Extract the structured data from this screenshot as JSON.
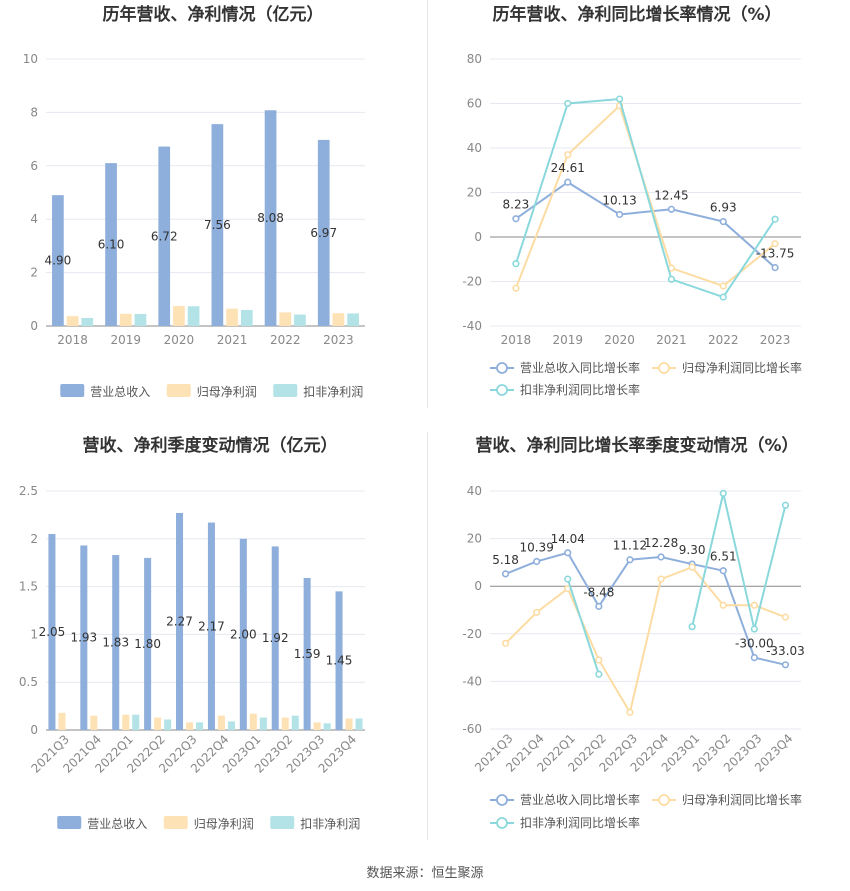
{
  "colors": {
    "revenue_bar": "#8eaedb",
    "netprofit_bar": "#fde2b6",
    "deducted_bar": "#b3e3e6",
    "revenue_line": "#8eaedb",
    "netprofit_line": "#fddca3",
    "deducted_line": "#8ad8dc",
    "grid": "#e5e8ef",
    "axis_text": "#666666",
    "title_text": "#333333"
  },
  "source_label": "数据来源：恒生聚源",
  "chart_data": [
    {
      "type": "bar",
      "title": "历年营收、净利情况（亿元）",
      "categories": [
        "2018",
        "2019",
        "2020",
        "2021",
        "2022",
        "2023"
      ],
      "ylim": [
        0,
        10
      ],
      "yticks": [
        0,
        2,
        4,
        6,
        8,
        10
      ],
      "grid": true,
      "legend_position": "bottom",
      "series": [
        {
          "name": "营业总收入",
          "values": [
            4.9,
            6.1,
            6.72,
            7.56,
            8.08,
            6.97
          ],
          "labels": [
            "4.90",
            "6.10",
            "6.72",
            "7.56",
            "8.08",
            "6.97"
          ]
        },
        {
          "name": "归母净利润",
          "values": [
            0.37,
            0.46,
            0.75,
            0.65,
            0.51,
            0.48
          ]
        },
        {
          "name": "扣非净利润",
          "values": [
            0.3,
            0.45,
            0.74,
            0.6,
            0.43,
            0.47
          ]
        }
      ]
    },
    {
      "type": "line",
      "title": "历年营收、净利同比增长率情况（%）",
      "categories": [
        "2018",
        "2019",
        "2020",
        "2021",
        "2022",
        "2023"
      ],
      "ylim": [
        -40,
        80
      ],
      "yticks": [
        -40,
        -20,
        0,
        20,
        40,
        60,
        80
      ],
      "grid": true,
      "legend_position": "bottom",
      "series": [
        {
          "name": "营业总收入同比增长率",
          "values": [
            8.23,
            24.61,
            10.13,
            12.45,
            6.93,
            -13.75
          ],
          "labels": [
            "8.23",
            "24.61",
            "10.13",
            "12.45",
            "6.93",
            "-13.75"
          ]
        },
        {
          "name": "归母净利润同比增长率",
          "values": [
            -23,
            37,
            59,
            -14,
            -22,
            -3
          ]
        },
        {
          "name": "扣非净利润同比增长率",
          "values": [
            -12,
            60,
            62,
            -19,
            -27,
            8
          ]
        }
      ]
    },
    {
      "type": "bar",
      "title": "营收、净利季度变动情况（亿元）",
      "categories": [
        "2021Q3",
        "2021Q4",
        "2022Q1",
        "2022Q2",
        "2022Q3",
        "2022Q4",
        "2023Q1",
        "2023Q2",
        "2023Q3",
        "2023Q4"
      ],
      "ylim": [
        0,
        2.5
      ],
      "yticks": [
        0,
        0.5,
        1,
        1.5,
        2,
        2.5
      ],
      "grid": true,
      "legend_position": "bottom",
      "series": [
        {
          "name": "营业总收入",
          "values": [
            2.05,
            1.93,
            1.83,
            1.8,
            2.27,
            2.17,
            2.0,
            1.92,
            1.59,
            1.45
          ],
          "labels": [
            "2.05",
            "1.93",
            "1.83",
            "1.80",
            "2.27",
            "2.17",
            "2.00",
            "1.92",
            "1.59",
            "1.45"
          ]
        },
        {
          "name": "归母净利润",
          "values": [
            0.18,
            0.15,
            0.16,
            0.13,
            0.08,
            0.15,
            0.17,
            0.13,
            0.08,
            0.12
          ]
        },
        {
          "name": "扣非净利润",
          "values": [
            null,
            null,
            0.16,
            0.11,
            0.08,
            0.09,
            0.13,
            0.15,
            0.07,
            0.12
          ]
        }
      ]
    },
    {
      "type": "line",
      "title": "营收、净利同比增长率季度变动情况（%）",
      "categories": [
        "2021Q3",
        "2021Q4",
        "2022Q1",
        "2022Q2",
        "2022Q3",
        "2022Q4",
        "2023Q1",
        "2023Q2",
        "2023Q3",
        "2023Q4"
      ],
      "ylim": [
        -60,
        40
      ],
      "yticks": [
        -60,
        -40,
        -20,
        0,
        20,
        40
      ],
      "grid": true,
      "legend_position": "bottom",
      "series": [
        {
          "name": "营业总收入同比增长率",
          "values": [
            5.18,
            10.39,
            14.04,
            -8.48,
            11.12,
            12.28,
            9.3,
            6.51,
            -30.0,
            -33.03
          ],
          "labels": [
            "5.18",
            "10.39",
            "14.04",
            "-8.48",
            "11.12",
            "12.28",
            "9.30",
            "6.51",
            "-30.00",
            "-33.03"
          ]
        },
        {
          "name": "归母净利润同比增长率",
          "values": [
            -24,
            -11,
            -1,
            -31,
            -53,
            3,
            8,
            -8,
            -8,
            -13
          ]
        },
        {
          "name": "扣非净利润同比增长率",
          "values": [
            null,
            null,
            3,
            -37,
            null,
            null,
            -17,
            39,
            -18,
            34
          ]
        }
      ]
    }
  ]
}
